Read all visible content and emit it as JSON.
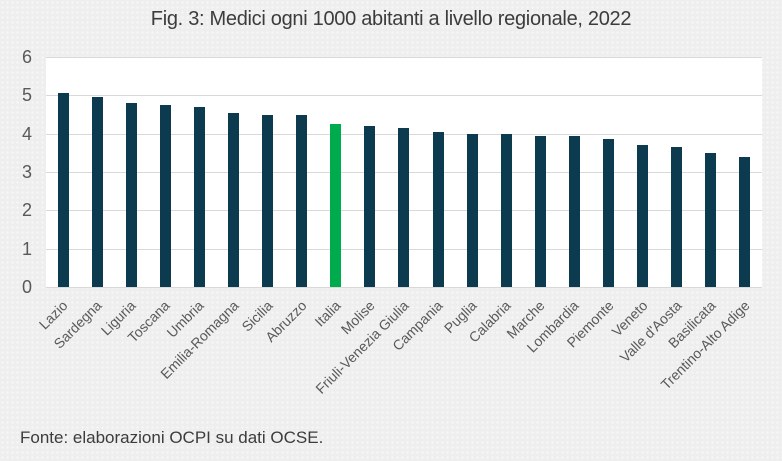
{
  "figure": {
    "title": "Fig. 3: Medici ogni 1000 abitanti a livello regionale, 2022",
    "source_note": "Fonte: elaborazioni OCPI su dati OCSE."
  },
  "colors": {
    "bar": "#0c3a4e",
    "highlight_bar": "#00ab4e",
    "background": "#eeeeee",
    "plot_background": "#ffffff",
    "gridline": "#d9d9d9",
    "axis_text": "#595959",
    "title_text": "#3c3c3c"
  },
  "chart_data": {
    "type": "bar",
    "title": "Fig. 3: Medici ogni 1000 abitanti a livello regionale, 2022",
    "categories": [
      "Lazio",
      "Sardegna",
      "Liguria",
      "Toscana",
      "Umbria",
      "Emilia-Romagna",
      "Sicilia",
      "Abruzzo",
      "Italia",
      "Molise",
      "Friuli-Venezia Giulia",
      "Campania",
      "Puglia",
      "Calabria",
      "Marche",
      "Lombardia",
      "Piemonte",
      "Veneto",
      "Valle d'Aosta",
      "Basilicata",
      "Trentino-Alto Adige"
    ],
    "values": [
      5.05,
      4.95,
      4.8,
      4.75,
      4.7,
      4.55,
      4.5,
      4.5,
      4.25,
      4.2,
      4.15,
      4.05,
      4.0,
      4.0,
      3.95,
      3.95,
      3.85,
      3.7,
      3.65,
      3.5,
      3.4
    ],
    "highlight_category": "Italia",
    "xlabel": "",
    "ylabel": "",
    "ylim": [
      0,
      6
    ],
    "yticks": [
      0,
      1,
      2,
      3,
      4,
      5,
      6
    ],
    "grid": true,
    "legend_position": "none",
    "source_note": "Fonte: elaborazioni OCPI su dati OCSE."
  }
}
